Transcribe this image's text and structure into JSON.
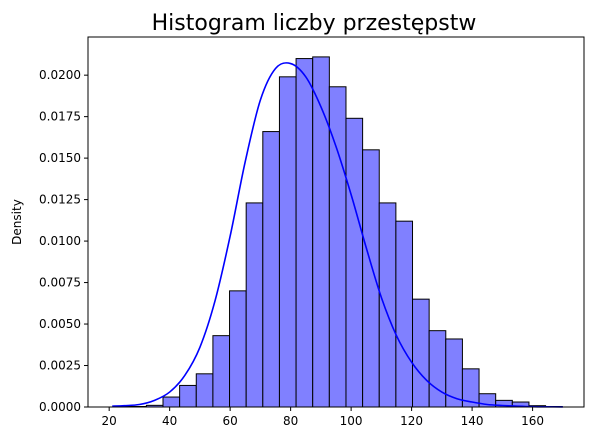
{
  "chart_data": {
    "type": "bar",
    "title": "Histogram liczby przestępstw",
    "xlabel": "",
    "ylabel": "Density",
    "xlim": [
      13,
      177
    ],
    "ylim": [
      0,
      0.0223
    ],
    "x_ticks": [
      20,
      40,
      60,
      80,
      100,
      120,
      140,
      160
    ],
    "y_ticks": [
      0.0,
      0.0025,
      0.005,
      0.0075,
      0.01,
      0.0125,
      0.015,
      0.0175,
      0.02
    ],
    "y_tick_labels": [
      "0.0000",
      "0.0025",
      "0.0050",
      "0.0075",
      "0.0100",
      "0.0125",
      "0.0150",
      "0.0175",
      "0.0200"
    ],
    "grid": false,
    "bins": {
      "edges": [
        21.3,
        26.8,
        32.3,
        37.8,
        43.3,
        48.8,
        54.3,
        59.8,
        65.3,
        70.8,
        76.3,
        81.8,
        87.3,
        92.8,
        98.3,
        103.8,
        109.3,
        114.8,
        120.3,
        125.8,
        131.3,
        136.8,
        142.3,
        147.8,
        153.3,
        158.8,
        164.3,
        169.8
      ],
      "density": [
        3e-05,
        3e-05,
        0.0001,
        0.0006,
        0.0013,
        0.002,
        0.0043,
        0.007,
        0.0123,
        0.0166,
        0.0199,
        0.021,
        0.0211,
        0.0193,
        0.0174,
        0.0155,
        0.0123,
        0.0112,
        0.0065,
        0.0046,
        0.0041,
        0.0023,
        0.0008,
        0.0004,
        0.0003,
        8e-05,
        3e-05
      ]
    },
    "kde": {
      "x": [
        21,
        25,
        30,
        35,
        40,
        45,
        50,
        55,
        60,
        65,
        70,
        75,
        80,
        85,
        90,
        95,
        100,
        105,
        110,
        115,
        120,
        125,
        130,
        135,
        140,
        145,
        150,
        155,
        160,
        165,
        170
      ],
      "y": [
        5e-05,
        8e-05,
        0.00015,
        0.0004,
        0.0009,
        0.0019,
        0.0036,
        0.0064,
        0.0103,
        0.0148,
        0.0185,
        0.0204,
        0.0207,
        0.0199,
        0.0181,
        0.0157,
        0.0128,
        0.0096,
        0.0066,
        0.0043,
        0.0027,
        0.0016,
        0.0009,
        0.0005,
        0.0003,
        0.00015,
        9e-05,
        5e-05,
        2e-05,
        1e-05,
        5e-06
      ]
    },
    "colors": {
      "bar_fill": "#8080ff",
      "bar_edge": "#000000",
      "kde_line": "#0000ff"
    }
  }
}
